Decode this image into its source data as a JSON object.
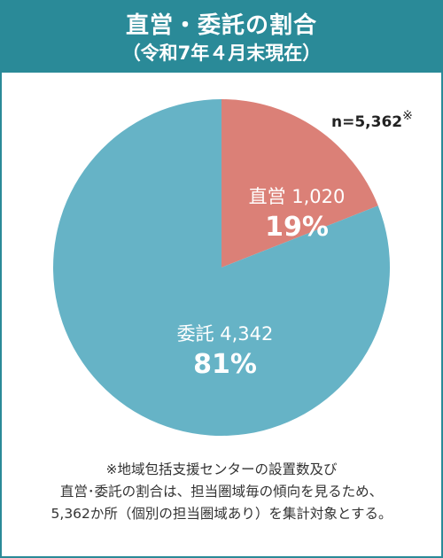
{
  "header": {
    "title": "直営・委託の割合",
    "subtitle": "（令和7年４月末現在）"
  },
  "n_label": {
    "text": "n=5,362",
    "mark": "※"
  },
  "colors": {
    "header_bg": "#2a8a98",
    "direct": "#db8077",
    "contract": "#66b3c6"
  },
  "chart_data": {
    "type": "pie",
    "title": "直営・委託の割合",
    "slices": [
      {
        "name": "直営",
        "value": 1020,
        "value_label": "1,020",
        "percent_label": "19%",
        "color": "#db8077"
      },
      {
        "name": "委託",
        "value": 4342,
        "value_label": "4,342",
        "percent_label": "81%",
        "color": "#66b3c6"
      }
    ],
    "total_label": "n=5,362"
  },
  "footnote": {
    "lines": [
      "※地域包括支援センターの設置数及び",
      "直営･委託の割合は、担当圏域毎の傾向を見るため、",
      "5,362か所（個別の担当圏域あり）を集計対象とする。"
    ]
  }
}
